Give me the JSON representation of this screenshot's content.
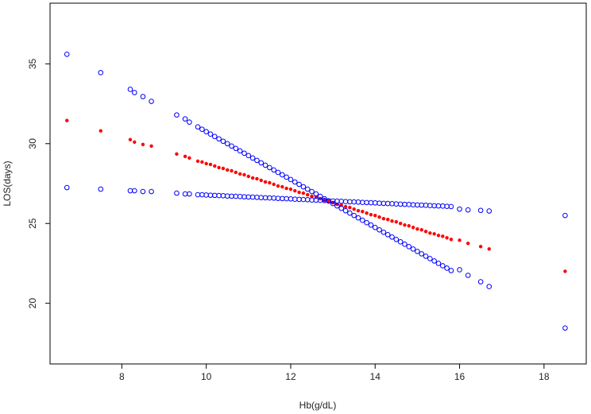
{
  "chart_data": {
    "type": "scatter",
    "xlabel": "Hb(g/dL)",
    "ylabel": "LOS(days)",
    "xlim": [
      6.3,
      19.0
    ],
    "ylim": [
      16.2,
      38.8
    ],
    "x_ticks": [
      8,
      10,
      12,
      14,
      16,
      18
    ],
    "y_ticks": [
      20,
      25,
      30,
      35
    ],
    "grid": false,
    "series": [
      {
        "marker": "filled-dot",
        "color": "#ff0000",
        "points": [
          [
            6.7,
            31.45
          ],
          [
            7.5,
            30.8
          ],
          [
            8.2,
            30.25
          ],
          [
            8.3,
            30.1
          ],
          [
            8.5,
            29.95
          ],
          [
            8.7,
            29.85
          ],
          [
            9.3,
            29.35
          ],
          [
            9.5,
            29.2
          ],
          [
            9.6,
            29.1
          ],
          [
            9.8,
            28.9
          ],
          [
            9.9,
            28.85
          ],
          [
            10.0,
            28.75
          ],
          [
            10.1,
            28.7
          ],
          [
            10.2,
            28.6
          ],
          [
            10.3,
            28.5
          ],
          [
            10.4,
            28.45
          ],
          [
            10.5,
            28.35
          ],
          [
            10.6,
            28.3
          ],
          [
            10.7,
            28.2
          ],
          [
            10.8,
            28.1
          ],
          [
            10.9,
            28.05
          ],
          [
            11.0,
            27.95
          ],
          [
            11.1,
            27.85
          ],
          [
            11.2,
            27.8
          ],
          [
            11.3,
            27.7
          ],
          [
            11.4,
            27.6
          ],
          [
            11.5,
            27.55
          ],
          [
            11.6,
            27.45
          ],
          [
            11.7,
            27.35
          ],
          [
            11.8,
            27.3
          ],
          [
            11.9,
            27.2
          ],
          [
            12.0,
            27.15
          ],
          [
            12.1,
            27.05
          ],
          [
            12.2,
            26.95
          ],
          [
            12.3,
            26.9
          ],
          [
            12.4,
            26.8
          ],
          [
            12.5,
            26.7
          ],
          [
            12.6,
            26.65
          ],
          [
            12.7,
            26.55
          ],
          [
            12.8,
            26.45
          ],
          [
            12.9,
            26.4
          ],
          [
            13.0,
            26.3
          ],
          [
            13.1,
            26.2
          ],
          [
            13.2,
            26.15
          ],
          [
            13.3,
            26.05
          ],
          [
            13.4,
            26.0
          ],
          [
            13.5,
            25.9
          ],
          [
            13.6,
            25.8
          ],
          [
            13.7,
            25.75
          ],
          [
            13.8,
            25.65
          ],
          [
            13.9,
            25.55
          ],
          [
            14.0,
            25.5
          ],
          [
            14.1,
            25.4
          ],
          [
            14.2,
            25.3
          ],
          [
            14.3,
            25.25
          ],
          [
            14.4,
            25.15
          ],
          [
            14.5,
            25.1
          ],
          [
            14.6,
            25.0
          ],
          [
            14.7,
            24.9
          ],
          [
            14.8,
            24.85
          ],
          [
            14.9,
            24.75
          ],
          [
            15.0,
            24.65
          ],
          [
            15.1,
            24.6
          ],
          [
            15.2,
            24.5
          ],
          [
            15.3,
            24.4
          ],
          [
            15.4,
            24.35
          ],
          [
            15.5,
            24.25
          ],
          [
            15.6,
            24.2
          ],
          [
            15.7,
            24.1
          ],
          [
            15.8,
            24.0
          ],
          [
            16.0,
            23.95
          ],
          [
            16.2,
            23.75
          ],
          [
            16.5,
            23.55
          ],
          [
            16.7,
            23.4
          ],
          [
            18.5,
            22.0
          ]
        ]
      },
      {
        "marker": "open-circle",
        "color": "#0000ff",
        "points": [
          [
            6.7,
            35.6
          ],
          [
            7.5,
            34.45
          ],
          [
            8.2,
            33.4
          ],
          [
            8.3,
            33.2
          ],
          [
            8.5,
            32.95
          ],
          [
            8.7,
            32.65
          ],
          [
            9.3,
            31.8
          ],
          [
            9.5,
            31.55
          ],
          [
            9.6,
            31.35
          ],
          [
            9.8,
            31.05
          ],
          [
            9.9,
            30.9
          ],
          [
            10.0,
            30.75
          ],
          [
            10.1,
            30.6
          ],
          [
            10.2,
            30.45
          ],
          [
            10.3,
            30.3
          ],
          [
            10.4,
            30.15
          ],
          [
            10.5,
            30.0
          ],
          [
            10.6,
            29.85
          ],
          [
            10.7,
            29.7
          ],
          [
            10.8,
            29.55
          ],
          [
            10.9,
            29.4
          ],
          [
            11.0,
            29.25
          ],
          [
            11.1,
            29.1
          ],
          [
            11.2,
            28.95
          ],
          [
            11.3,
            28.8
          ],
          [
            11.4,
            28.65
          ],
          [
            11.5,
            28.5
          ],
          [
            11.6,
            28.35
          ],
          [
            11.7,
            28.2
          ],
          [
            11.8,
            28.05
          ],
          [
            11.9,
            27.9
          ],
          [
            12.0,
            27.75
          ],
          [
            12.1,
            27.6
          ],
          [
            12.2,
            27.45
          ],
          [
            12.3,
            27.3
          ],
          [
            12.4,
            27.15
          ],
          [
            12.5,
            27.0
          ],
          [
            12.6,
            26.85
          ],
          [
            12.7,
            26.7
          ],
          [
            12.8,
            26.55
          ],
          [
            12.9,
            26.4
          ],
          [
            13.0,
            26.25
          ],
          [
            13.1,
            26.1
          ],
          [
            13.2,
            25.95
          ],
          [
            13.3,
            25.8
          ],
          [
            13.4,
            25.65
          ],
          [
            13.5,
            25.5
          ],
          [
            13.6,
            25.35
          ],
          [
            13.7,
            25.2
          ],
          [
            13.8,
            25.05
          ],
          [
            13.9,
            24.9
          ],
          [
            14.0,
            24.75
          ],
          [
            14.1,
            24.6
          ],
          [
            14.2,
            24.45
          ],
          [
            14.3,
            24.3
          ],
          [
            14.4,
            24.15
          ],
          [
            14.5,
            24.0
          ],
          [
            14.6,
            23.85
          ],
          [
            14.7,
            23.7
          ],
          [
            14.8,
            23.55
          ],
          [
            14.9,
            23.4
          ],
          [
            15.0,
            23.25
          ],
          [
            15.1,
            23.1
          ],
          [
            15.2,
            22.95
          ],
          [
            15.3,
            22.8
          ],
          [
            15.4,
            22.65
          ],
          [
            15.5,
            22.5
          ],
          [
            15.6,
            22.35
          ],
          [
            15.7,
            22.2
          ],
          [
            15.8,
            22.05
          ],
          [
            16.0,
            22.1
          ],
          [
            16.2,
            21.75
          ],
          [
            16.5,
            21.35
          ],
          [
            16.7,
            21.05
          ],
          [
            18.5,
            18.45
          ]
        ]
      },
      {
        "marker": "open-circle",
        "color": "#0000ff",
        "points": [
          [
            6.7,
            27.25
          ],
          [
            7.5,
            27.15
          ],
          [
            8.2,
            27.05
          ],
          [
            8.3,
            27.05
          ],
          [
            8.5,
            27.0
          ],
          [
            8.7,
            27.0
          ],
          [
            9.3,
            26.9
          ],
          [
            9.5,
            26.85
          ],
          [
            9.6,
            26.85
          ],
          [
            9.8,
            26.8
          ],
          [
            9.9,
            26.8
          ],
          [
            10.0,
            26.78
          ],
          [
            10.1,
            26.77
          ],
          [
            10.2,
            26.76
          ],
          [
            10.3,
            26.75
          ],
          [
            10.4,
            26.74
          ],
          [
            10.5,
            26.72
          ],
          [
            10.6,
            26.71
          ],
          [
            10.7,
            26.7
          ],
          [
            10.8,
            26.69
          ],
          [
            10.9,
            26.67
          ],
          [
            11.0,
            26.66
          ],
          [
            11.1,
            26.65
          ],
          [
            11.2,
            26.64
          ],
          [
            11.3,
            26.62
          ],
          [
            11.4,
            26.61
          ],
          [
            11.5,
            26.6
          ],
          [
            11.6,
            26.59
          ],
          [
            11.7,
            26.57
          ],
          [
            11.8,
            26.56
          ],
          [
            11.9,
            26.55
          ],
          [
            12.0,
            26.54
          ],
          [
            12.1,
            26.52
          ],
          [
            12.2,
            26.51
          ],
          [
            12.3,
            26.5
          ],
          [
            12.4,
            26.49
          ],
          [
            12.5,
            26.47
          ],
          [
            12.6,
            26.46
          ],
          [
            12.7,
            26.45
          ],
          [
            12.8,
            26.44
          ],
          [
            12.9,
            26.42
          ],
          [
            13.0,
            26.41
          ],
          [
            13.1,
            26.4
          ],
          [
            13.2,
            26.39
          ],
          [
            13.3,
            26.37
          ],
          [
            13.4,
            26.36
          ],
          [
            13.5,
            26.35
          ],
          [
            13.6,
            26.34
          ],
          [
            13.7,
            26.32
          ],
          [
            13.8,
            26.31
          ],
          [
            13.9,
            26.3
          ],
          [
            14.0,
            26.29
          ],
          [
            14.1,
            26.27
          ],
          [
            14.2,
            26.26
          ],
          [
            14.3,
            26.25
          ],
          [
            14.4,
            26.24
          ],
          [
            14.5,
            26.22
          ],
          [
            14.6,
            26.21
          ],
          [
            14.7,
            26.2
          ],
          [
            14.8,
            26.19
          ],
          [
            14.9,
            26.17
          ],
          [
            15.0,
            26.16
          ],
          [
            15.1,
            26.15
          ],
          [
            15.2,
            26.14
          ],
          [
            15.3,
            26.12
          ],
          [
            15.4,
            26.11
          ],
          [
            15.5,
            26.1
          ],
          [
            15.6,
            26.09
          ],
          [
            15.7,
            26.07
          ],
          [
            15.8,
            26.06
          ],
          [
            16.0,
            25.9
          ],
          [
            16.2,
            25.85
          ],
          [
            16.5,
            25.82
          ],
          [
            16.7,
            25.78
          ],
          [
            18.5,
            25.5
          ]
        ]
      }
    ]
  }
}
